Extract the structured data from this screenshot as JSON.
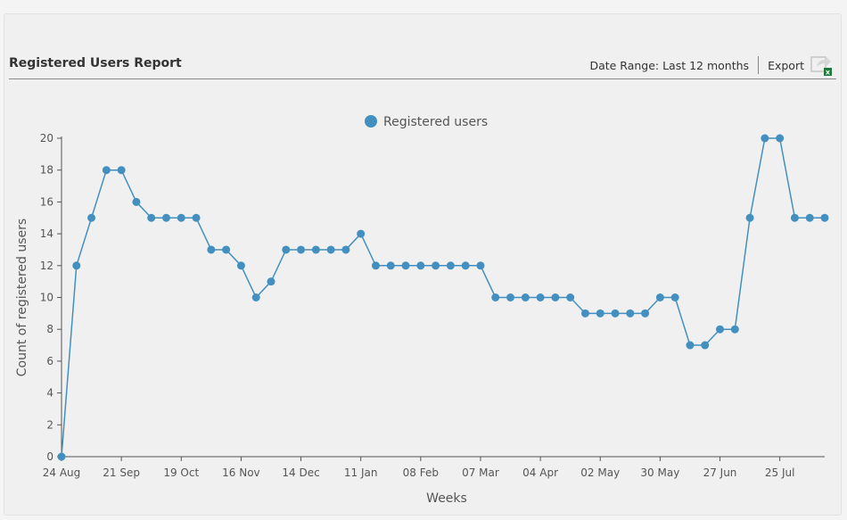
{
  "header": {
    "title": "Registered Users Report",
    "date_range": "Date Range: Last 12 months",
    "export_label": "Export",
    "export_icon": "export-excel-icon"
  },
  "colors": {
    "series": "#4390c0",
    "axis": "#555555"
  },
  "chart_data": {
    "type": "line",
    "title": "",
    "xlabel": "Weeks",
    "ylabel": "Count of registered users",
    "ylim": [
      0,
      20
    ],
    "yticks": [
      0,
      2,
      4,
      6,
      8,
      10,
      12,
      14,
      16,
      18,
      20
    ],
    "xtick_labels": [
      "24 Aug",
      "21 Sep",
      "19 Oct",
      "16 Nov",
      "14 Dec",
      "11 Jan",
      "08 Feb",
      "07 Mar",
      "04 Apr",
      "02 May",
      "30 May",
      "27 Jun",
      "25 Jul"
    ],
    "xtick_every": 4,
    "legend": "top-center",
    "grid": false,
    "series": [
      {
        "name": "Registered users",
        "values": [
          0,
          12,
          15,
          18,
          18,
          16,
          15,
          15,
          15,
          15,
          13,
          13,
          12,
          10,
          11,
          13,
          13,
          13,
          13,
          13,
          14,
          12,
          12,
          12,
          12,
          12,
          12,
          12,
          12,
          10,
          10,
          10,
          10,
          10,
          10,
          9,
          9,
          9,
          9,
          9,
          10,
          10,
          7,
          7,
          8,
          8,
          15,
          20,
          20,
          15,
          15,
          15
        ]
      }
    ]
  }
}
